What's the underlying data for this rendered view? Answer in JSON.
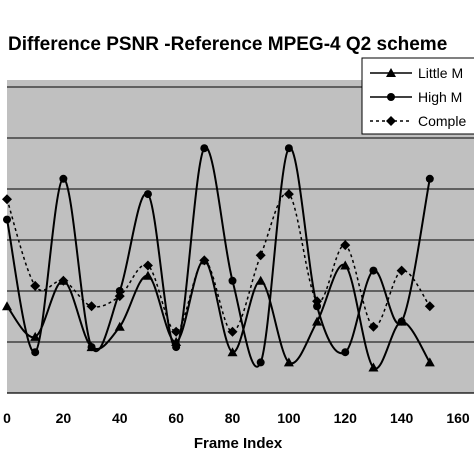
{
  "chart_data": {
    "type": "line",
    "title": "Difference PSNR -Reference MPEG-4 Q2 scheme",
    "xlabel": "Frame Index",
    "ylabel": "",
    "x": [
      0,
      10,
      20,
      30,
      40,
      50,
      60,
      70,
      80,
      90,
      100,
      110,
      120,
      130,
      140,
      150
    ],
    "xlim": [
      0,
      160
    ],
    "xticks": [
      0,
      20,
      40,
      60,
      80,
      100,
      120,
      140,
      160
    ],
    "ylim": [
      0,
      6
    ],
    "grid": true,
    "legend_position": "top-right",
    "series": [
      {
        "name": "Little M",
        "marker": "triangle",
        "dash": "solid",
        "values": [
          1.7,
          1.1,
          2.2,
          0.9,
          1.3,
          2.3,
          1.0,
          2.6,
          0.8,
          2.2,
          0.6,
          1.4,
          2.5,
          0.5,
          1.4,
          0.6
        ]
      },
      {
        "name": "High M",
        "marker": "circle",
        "dash": "solid",
        "values": [
          3.4,
          0.8,
          4.2,
          0.9,
          2.0,
          3.9,
          0.9,
          4.8,
          2.2,
          0.6,
          4.8,
          1.7,
          0.8,
          2.4,
          1.4,
          4.2
        ]
      },
      {
        "name": "Comple",
        "marker": "diamond",
        "dash": "dotted",
        "values": [
          3.8,
          2.1,
          2.2,
          1.7,
          1.9,
          2.5,
          1.2,
          2.6,
          1.2,
          2.7,
          3.9,
          1.8,
          2.9,
          1.3,
          2.4,
          1.7
        ]
      }
    ]
  }
}
